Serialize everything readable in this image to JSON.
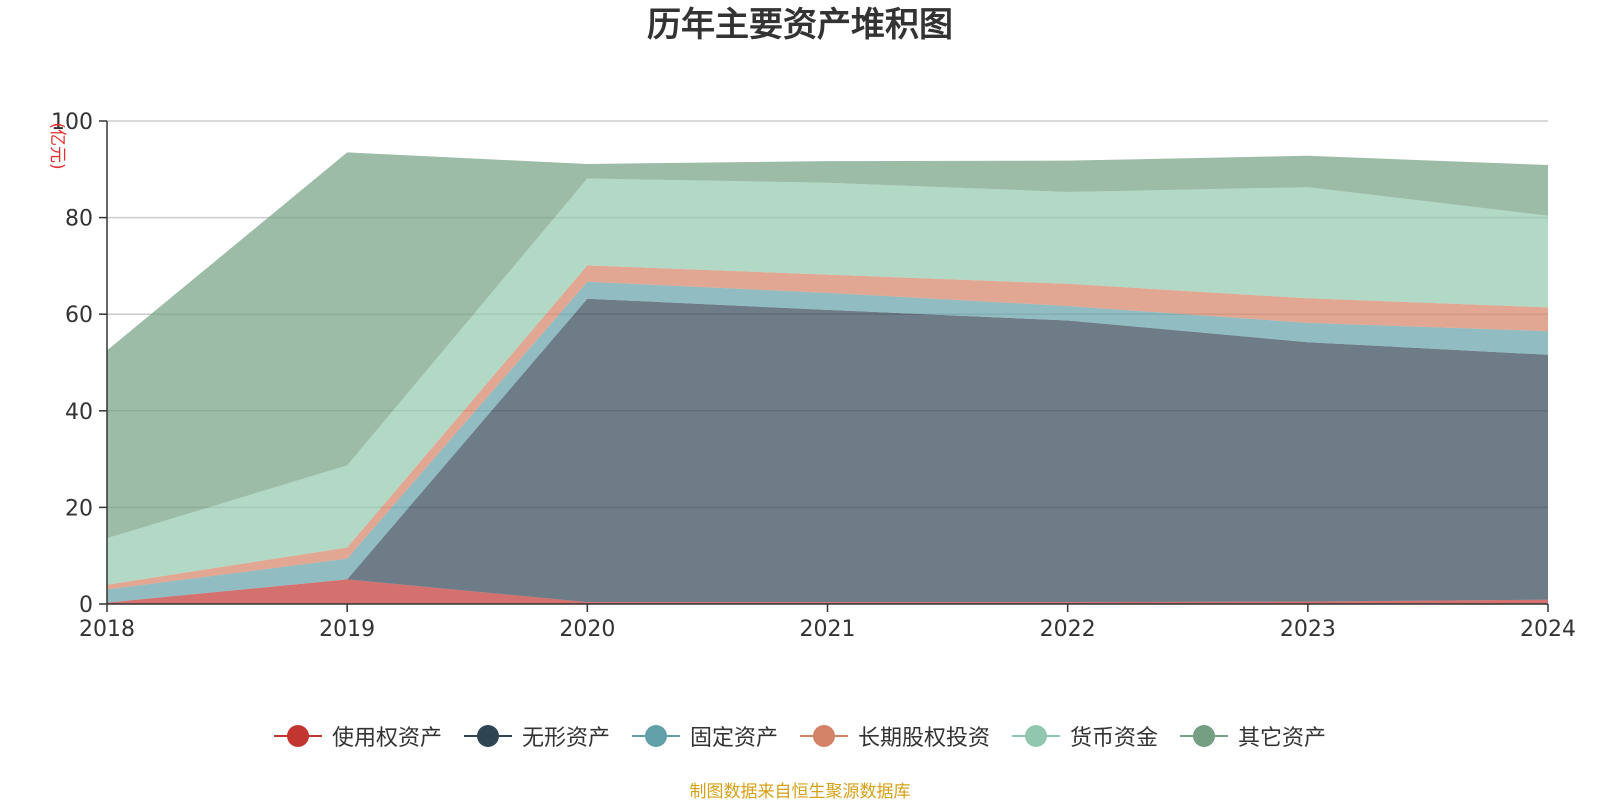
{
  "title": "历年主要资产堆积图",
  "source_note": "制图数据来自恒生聚源数据库",
  "chart_data": {
    "type": "area",
    "stacked": true,
    "title": "历年主要资产堆积图",
    "ylabel": "(亿元)",
    "xlabel": "",
    "ylim": [
      0,
      100
    ],
    "yticks": [
      0,
      20,
      40,
      60,
      80,
      100
    ],
    "grid": true,
    "legend_position": "bottom",
    "categories": [
      "2018",
      "2019",
      "2020",
      "2021",
      "2022",
      "2023",
      "2024"
    ],
    "series": [
      {
        "name": "使用权资产",
        "color": "#c23531",
        "values": [
          0.3,
          5.1,
          0.4,
          0.4,
          0.4,
          0.5,
          0.9
        ]
      },
      {
        "name": "无形资产",
        "color": "#2f4554",
        "values": [
          0.0,
          0.0,
          62.8,
          60.5,
          58.3,
          53.7,
          50.7
        ]
      },
      {
        "name": "固定资产",
        "color": "#61a0a8",
        "values": [
          2.7,
          4.3,
          3.5,
          3.5,
          3.0,
          4.0,
          4.9
        ]
      },
      {
        "name": "长期股权投资",
        "color": "#d48265",
        "values": [
          1.0,
          2.3,
          3.4,
          3.8,
          4.6,
          5.1,
          4.9
        ]
      },
      {
        "name": "货币资金",
        "color": "#91c7ae",
        "values": [
          9.6,
          17.0,
          18.0,
          19.0,
          19.0,
          23.0,
          19.0
        ]
      },
      {
        "name": "其它资产",
        "color": "#749f83",
        "values": [
          38.9,
          64.8,
          3.0,
          4.5,
          6.5,
          6.5,
          10.5
        ]
      }
    ]
  }
}
